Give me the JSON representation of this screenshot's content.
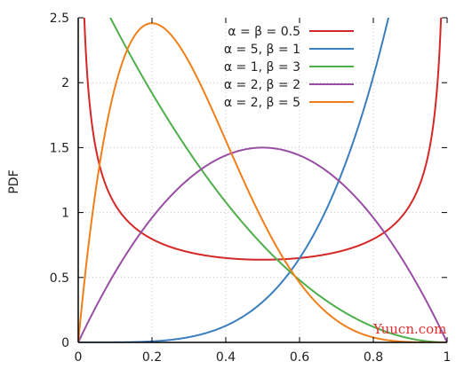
{
  "chart_data": {
    "type": "line",
    "title": "",
    "xlabel": "",
    "ylabel": "PDF",
    "xlim": [
      0,
      1
    ],
    "ylim": [
      0,
      2.5
    ],
    "x_ticks": [
      "0",
      "0.2",
      "0.4",
      "0.6",
      "0.8",
      "1"
    ],
    "y_ticks": [
      "0",
      "0.5",
      "1",
      "1.5",
      "2",
      "2.5"
    ],
    "grid": true,
    "legend_position": "top-right",
    "series": [
      {
        "name": "α = β = 0.5",
        "alpha": 0.5,
        "beta": 0.5,
        "color": "#d62728"
      },
      {
        "name": "α = 5, β = 1",
        "alpha": 5,
        "beta": 1,
        "color": "#3a7ebf"
      },
      {
        "name": "α = 1, β = 3",
        "alpha": 1,
        "beta": 3,
        "color": "#4daf4a"
      },
      {
        "name": "α = 2, β = 2",
        "alpha": 2,
        "beta": 2,
        "color": "#984ea3"
      },
      {
        "name": "α = 2, β = 5",
        "alpha": 2,
        "beta": 5,
        "color": "#f07f1a"
      }
    ]
  },
  "watermark": {
    "text": "Yuucn.com",
    "color": "#e03030"
  }
}
